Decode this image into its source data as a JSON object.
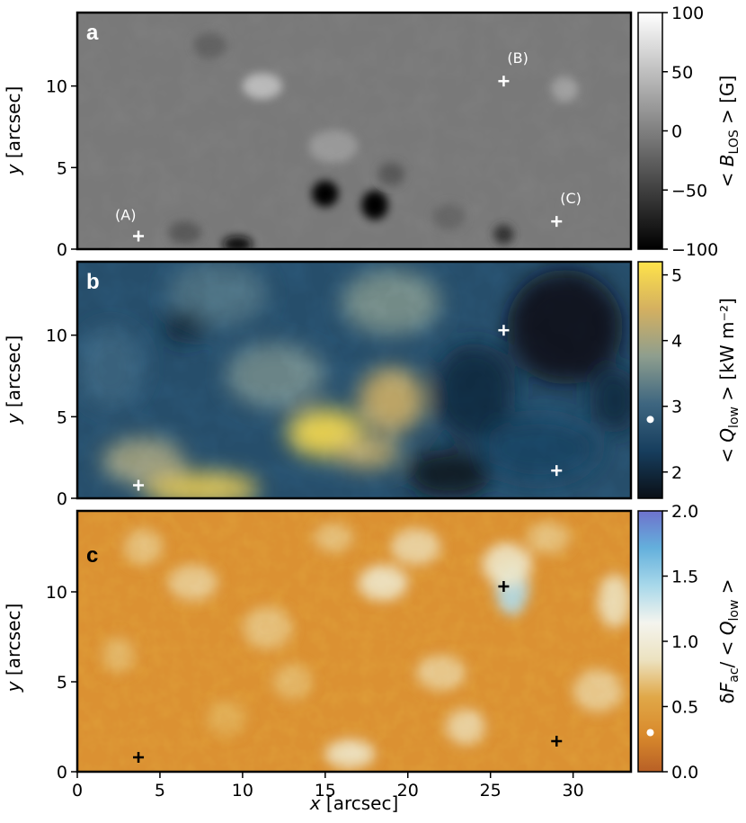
{
  "chart_data": [
    {
      "type": "heatmap",
      "panel_label": "a",
      "ylabel_base": "y",
      "ylabel_unit": " [arcsec]",
      "xlim": [
        0,
        33.5
      ],
      "ylim": [
        0,
        14.5
      ],
      "yticks": [
        0,
        5,
        10
      ],
      "colormap": [
        "#000000",
        "#ffffff"
      ],
      "colorbar": {
        "label_prefix": "< ",
        "label_symbol": "B",
        "label_subscript": "LOS",
        "label_suffix": " >  [G]",
        "range": [
          -100,
          100
        ],
        "ticks": [
          100,
          50,
          0,
          -50,
          -100
        ],
        "tick_labels": [
          "100",
          "50",
          "0",
          "−50",
          "−100"
        ]
      },
      "markers": [
        {
          "label": "(A)",
          "x": 3.7,
          "y": 0.8
        },
        {
          "label": "(B)",
          "x": 25.8,
          "y": 10.3
        },
        {
          "label": "(C)",
          "x": 29.0,
          "y": 1.7
        }
      ],
      "marker_color": "#ffffff",
      "features": [
        {
          "x": 15.0,
          "y": 3.4,
          "value": -100,
          "rx": 0.8,
          "ry": 0.8
        },
        {
          "x": 18.0,
          "y": 2.7,
          "value": -100,
          "rx": 0.8,
          "ry": 0.9
        },
        {
          "x": 9.7,
          "y": 0.3,
          "value": -90,
          "rx": 0.9,
          "ry": 0.5
        },
        {
          "x": 25.8,
          "y": 0.9,
          "value": -60,
          "rx": 0.6,
          "ry": 0.6
        },
        {
          "x": 11.2,
          "y": 10.0,
          "value": 45,
          "rx": 1.2,
          "ry": 0.8
        },
        {
          "x": 29.5,
          "y": 9.8,
          "value": 25,
          "rx": 0.8,
          "ry": 0.8
        },
        {
          "x": 19.0,
          "y": 4.6,
          "value": -30,
          "rx": 0.8,
          "ry": 0.7
        },
        {
          "x": 8.0,
          "y": 12.5,
          "value": -25,
          "rx": 1.0,
          "ry": 0.8
        },
        {
          "x": 15.5,
          "y": 6.3,
          "value": 20,
          "rx": 1.5,
          "ry": 1.0
        },
        {
          "x": 6.5,
          "y": 1.0,
          "value": -30,
          "rx": 1.0,
          "ry": 0.7
        },
        {
          "x": 22.5,
          "y": 2.0,
          "value": -20,
          "rx": 1.0,
          "ry": 0.8
        }
      ]
    },
    {
      "type": "heatmap",
      "panel_label": "b",
      "ylabel_base": "y",
      "ylabel_unit": " [arcsec]",
      "xlim": [
        0,
        33.5
      ],
      "ylim": [
        0,
        14.5
      ],
      "yticks": [
        0,
        5,
        10
      ],
      "colormap": [
        "#0a0f16",
        "#173e5e",
        "#3e6680",
        "#8e9e8e",
        "#d4b060",
        "#ffe34a"
      ],
      "colorbar": {
        "label_prefix": "< ",
        "label_symbol": "Q",
        "label_subscript": "low",
        "label_suffix": " >  [kW m⁻²]",
        "range": [
          1.6,
          5.2
        ],
        "ticks": [
          5,
          4,
          3,
          2
        ],
        "tick_labels": [
          "5",
          "4",
          "3",
          "2"
        ],
        "dot_value": 2.8
      },
      "markers": [
        {
          "x": 3.7,
          "y": 0.8
        },
        {
          "x": 25.8,
          "y": 10.3
        },
        {
          "x": 29.0,
          "y": 1.7
        }
      ],
      "marker_color": "#ffffff",
      "features": [
        {
          "x": 15.0,
          "y": 4.0,
          "value": 5.1,
          "rx": 2.3,
          "ry": 1.5
        },
        {
          "x": 19.0,
          "y": 6.0,
          "value": 4.4,
          "rx": 2.0,
          "ry": 2.0
        },
        {
          "x": 17.5,
          "y": 2.8,
          "value": 4.3,
          "rx": 2.0,
          "ry": 1.0
        },
        {
          "x": 7.5,
          "y": 0.6,
          "value": 4.9,
          "rx": 3.5,
          "ry": 1.0
        },
        {
          "x": 4.0,
          "y": 2.3,
          "value": 4.0,
          "rx": 2.5,
          "ry": 1.4
        },
        {
          "x": 12.0,
          "y": 7.5,
          "value": 3.5,
          "rx": 3.0,
          "ry": 2.0
        },
        {
          "x": 19.0,
          "y": 12.0,
          "value": 3.6,
          "rx": 3.0,
          "ry": 2.0
        },
        {
          "x": 8.5,
          "y": 12.5,
          "value": 3.2,
          "rx": 3.0,
          "ry": 2.0
        },
        {
          "x": 2.0,
          "y": 8.0,
          "value": 3.0,
          "rx": 2.0,
          "ry": 2.5
        },
        {
          "x": 24.0,
          "y": 6.5,
          "value": 2.0,
          "rx": 2.5,
          "ry": 3.0
        },
        {
          "x": 22.5,
          "y": 1.5,
          "value": 1.7,
          "rx": 2.5,
          "ry": 1.5
        },
        {
          "x": 29.5,
          "y": 10.5,
          "value": 1.6,
          "rx": 3.5,
          "ry": 3.5
        },
        {
          "x": 28.0,
          "y": 3.0,
          "value": 2.4,
          "rx": 3.5,
          "ry": 2.0
        },
        {
          "x": 6.5,
          "y": 10.5,
          "value": 1.9,
          "rx": 1.2,
          "ry": 1.0
        },
        {
          "x": 32.5,
          "y": 6.0,
          "value": 2.0,
          "rx": 1.5,
          "ry": 2.0
        }
      ]
    },
    {
      "type": "heatmap",
      "panel_label": "c",
      "ylabel_base": "y",
      "ylabel_unit": " [arcsec]",
      "xlabel_base": "x",
      "xlabel_unit": " [arcsec]",
      "xlim": [
        0,
        33.5
      ],
      "ylim": [
        0,
        14.5
      ],
      "xticks": [
        0,
        5,
        10,
        15,
        20,
        25,
        30
      ],
      "yticks": [
        0,
        5,
        10
      ],
      "colormap": [
        "#b86026",
        "#d98a2c",
        "#e0a848",
        "#ece2c0",
        "#f4f4ee",
        "#a8d8ea",
        "#64b0dc",
        "#6e72cc"
      ],
      "colorbar": {
        "label_prefix": "δ",
        "label_symbol": "F",
        "label_subscript": "ac",
        "label_suffix_a": "/ < ",
        "label_symbol2": "Q",
        "label_subscript2": "low",
        "label_suffix_b": " >",
        "range": [
          0.0,
          2.0
        ],
        "ticks": [
          2.0,
          1.5,
          1.0,
          0.5,
          0.0
        ],
        "tick_labels": [
          "2.0",
          "1.5",
          "1.0",
          "0.5",
          "0.0"
        ],
        "dot_value": 0.3
      },
      "markers": [
        {
          "x": 3.7,
          "y": 0.8
        },
        {
          "x": 25.8,
          "y": 10.3
        },
        {
          "x": 29.0,
          "y": 1.7
        }
      ],
      "marker_color": "#000000",
      "features": [
        {
          "x": 26.3,
          "y": 10.2,
          "value": 1.4,
          "rx": 1.0,
          "ry": 1.5
        },
        {
          "x": 26.0,
          "y": 11.5,
          "value": 0.9,
          "rx": 1.5,
          "ry": 1.2
        },
        {
          "x": 18.5,
          "y": 10.5,
          "value": 0.9,
          "rx": 1.5,
          "ry": 1.0
        },
        {
          "x": 20.5,
          "y": 12.5,
          "value": 0.8,
          "rx": 1.5,
          "ry": 1.0
        },
        {
          "x": 7.0,
          "y": 10.5,
          "value": 0.75,
          "rx": 1.5,
          "ry": 1.0
        },
        {
          "x": 11.5,
          "y": 8.0,
          "value": 0.7,
          "rx": 1.5,
          "ry": 1.2
        },
        {
          "x": 16.5,
          "y": 1.0,
          "value": 0.9,
          "rx": 1.5,
          "ry": 0.8
        },
        {
          "x": 23.5,
          "y": 2.5,
          "value": 0.8,
          "rx": 1.2,
          "ry": 1.0
        },
        {
          "x": 22.0,
          "y": 5.5,
          "value": 0.75,
          "rx": 1.5,
          "ry": 1.0
        },
        {
          "x": 31.5,
          "y": 4.5,
          "value": 0.75,
          "rx": 1.5,
          "ry": 1.2
        },
        {
          "x": 13.0,
          "y": 5.0,
          "value": 0.65,
          "rx": 1.2,
          "ry": 1.0
        },
        {
          "x": 4.0,
          "y": 12.5,
          "value": 0.7,
          "rx": 1.2,
          "ry": 1.0
        },
        {
          "x": 2.5,
          "y": 6.5,
          "value": 0.65,
          "rx": 1.0,
          "ry": 1.0
        },
        {
          "x": 32.5,
          "y": 9.5,
          "value": 0.85,
          "rx": 1.0,
          "ry": 1.5
        },
        {
          "x": 9.0,
          "y": 3.0,
          "value": 0.6,
          "rx": 1.2,
          "ry": 1.0
        },
        {
          "x": 28.5,
          "y": 13.0,
          "value": 0.7,
          "rx": 1.3,
          "ry": 0.9
        },
        {
          "x": 15.5,
          "y": 13.0,
          "value": 0.7,
          "rx": 1.2,
          "ry": 0.8
        }
      ]
    }
  ]
}
